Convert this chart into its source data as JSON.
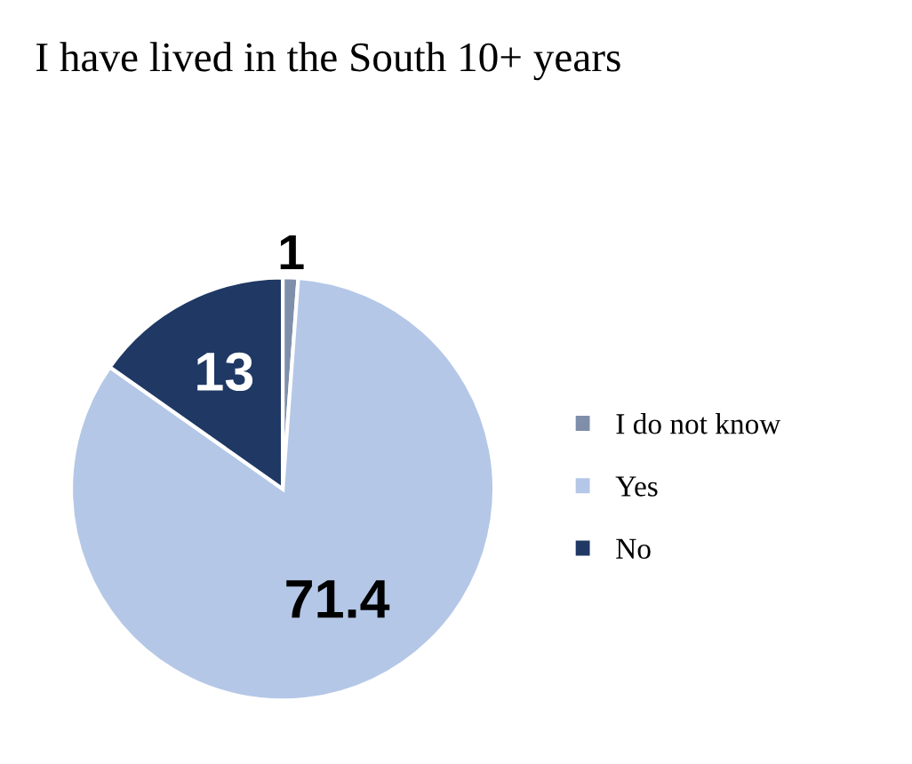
{
  "chart_data": {
    "type": "pie",
    "title": "I have lived in the South 10+ years",
    "categories": [
      "I do not know",
      "Yes",
      "No"
    ],
    "values": [
      1,
      71.4,
      13
    ],
    "colors": [
      "#7f8fa9",
      "#b4c7e7",
      "#1f3864"
    ],
    "data_labels": true,
    "legend": "right"
  }
}
